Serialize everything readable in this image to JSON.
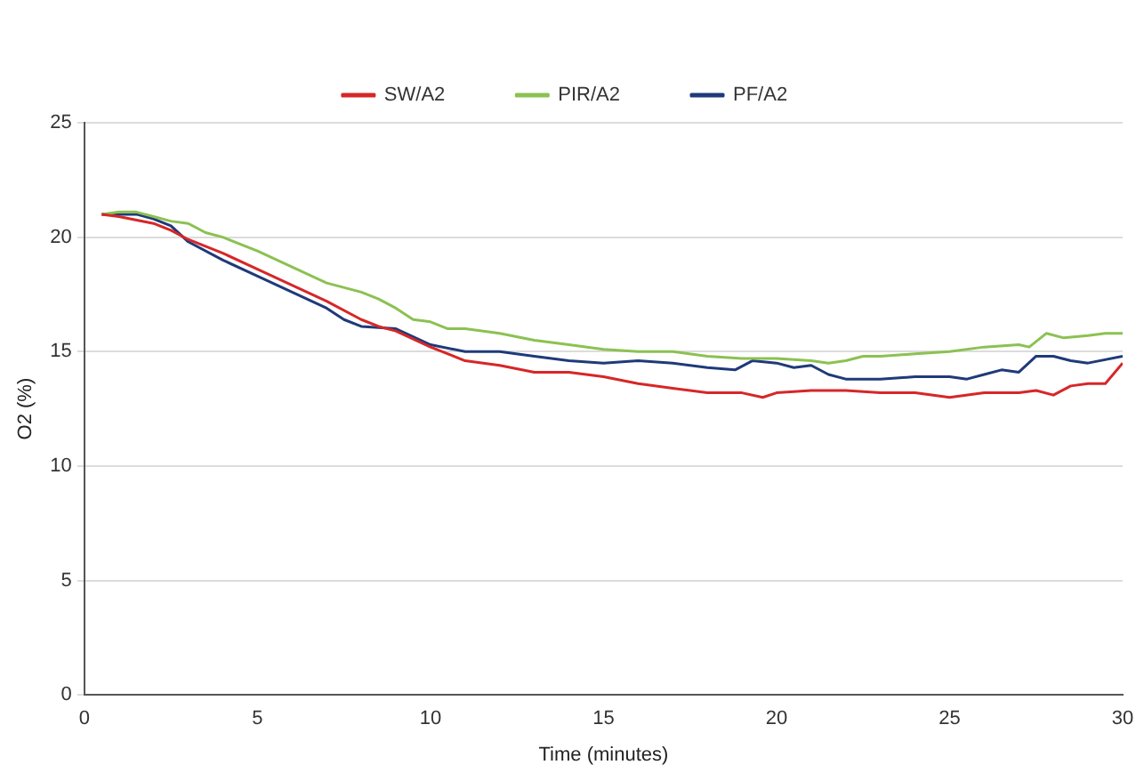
{
  "chart_data": {
    "type": "line",
    "xlabel": "Time (minutes)",
    "ylabel": "O2 (%)",
    "xlim": [
      0,
      30
    ],
    "xticks": [
      0,
      5,
      10,
      15,
      20,
      25,
      30
    ],
    "ylim": [
      0,
      25
    ],
    "yticks": [
      0,
      5,
      10,
      15,
      20,
      25
    ],
    "grid": "y",
    "legend": "top",
    "marker": "none",
    "line_style": "solid",
    "series": [
      {
        "name": "SW/A2",
        "color": "#d62728",
        "x": [
          0.5,
          1,
          2,
          2.5,
          3,
          4,
          5,
          6,
          7,
          8,
          8.5,
          9,
          10,
          11,
          12,
          13,
          14,
          15,
          16,
          17,
          18,
          19,
          19.6,
          20,
          21,
          22,
          23,
          24,
          25,
          26,
          27,
          27.5,
          28,
          28.5,
          29,
          29.5,
          30
        ],
        "values": [
          21.0,
          20.9,
          20.6,
          20.3,
          19.9,
          19.3,
          18.6,
          17.9,
          17.2,
          16.4,
          16.1,
          15.9,
          15.2,
          14.6,
          14.4,
          14.1,
          14.1,
          13.9,
          13.6,
          13.4,
          13.2,
          13.2,
          13.0,
          13.2,
          13.3,
          13.3,
          13.2,
          13.2,
          13.0,
          13.2,
          13.2,
          13.3,
          13.1,
          13.5,
          13.6,
          13.6,
          14.5
        ]
      },
      {
        "name": "PIR/A2",
        "color": "#8cc152",
        "x": [
          0.5,
          1,
          1.5,
          2,
          2.5,
          3,
          3.5,
          4,
          5,
          6,
          7,
          8,
          8.5,
          9,
          9.5,
          10,
          10.5,
          11,
          12,
          13,
          14,
          15,
          16,
          17,
          18,
          19,
          20,
          21,
          21.5,
          22,
          22.5,
          23,
          24,
          25,
          26,
          27,
          27.3,
          27.8,
          28.3,
          29,
          29.5,
          30
        ],
        "values": [
          21.0,
          21.1,
          21.1,
          20.9,
          20.7,
          20.6,
          20.2,
          20.0,
          19.4,
          18.7,
          18.0,
          17.6,
          17.3,
          16.9,
          16.4,
          16.3,
          16.0,
          16.0,
          15.8,
          15.5,
          15.3,
          15.1,
          15.0,
          15.0,
          14.8,
          14.7,
          14.7,
          14.6,
          14.5,
          14.6,
          14.8,
          14.8,
          14.9,
          15.0,
          15.2,
          15.3,
          15.2,
          15.8,
          15.6,
          15.7,
          15.8,
          15.8
        ]
      },
      {
        "name": "PF/A2",
        "color": "#1f3a7a",
        "x": [
          0.5,
          1,
          1.5,
          2,
          2.5,
          3,
          4,
          5,
          6,
          7,
          7.5,
          8,
          9,
          10,
          11,
          12,
          13,
          14,
          15,
          16,
          17,
          18,
          18.8,
          19.3,
          20,
          20.5,
          21,
          21.5,
          22,
          23,
          24,
          25,
          25.5,
          26,
          26.5,
          27,
          27.5,
          28,
          28.5,
          29,
          30
        ],
        "values": [
          21.0,
          21.0,
          21.0,
          20.8,
          20.5,
          19.8,
          19.0,
          18.3,
          17.6,
          16.9,
          16.4,
          16.1,
          16.0,
          15.3,
          15.0,
          15.0,
          14.8,
          14.6,
          14.5,
          14.6,
          14.5,
          14.3,
          14.2,
          14.6,
          14.5,
          14.3,
          14.4,
          14.0,
          13.8,
          13.8,
          13.9,
          13.9,
          13.8,
          14.0,
          14.2,
          14.1,
          14.8,
          14.8,
          14.6,
          14.5,
          14.8
        ]
      }
    ]
  }
}
